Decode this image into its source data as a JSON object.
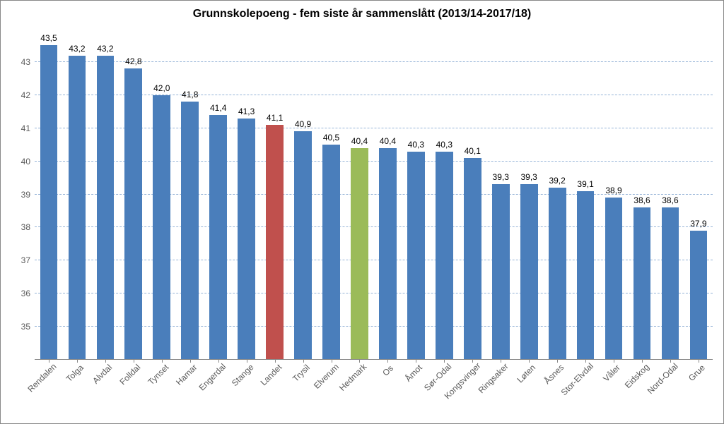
{
  "chart": {
    "type": "bar",
    "title": "Grunnskolepoeng  - fem siste år sammenslått (2013/14-2017/18)",
    "title_fontsize": 16,
    "title_color": "#000000",
    "background_color": "#ffffff",
    "border_color": "#888888",
    "grid_color": "#95b3d7",
    "grid_dash": "dashed",
    "axis_line_color": "#888888",
    "label_color": "#595959",
    "value_label_color": "#000000",
    "value_label_fontsize": 12,
    "axis_label_fontsize": 12,
    "x_label_rotation_deg": -45,
    "ylim": [
      34,
      44
    ],
    "yticks": [
      34,
      35,
      36,
      37,
      38,
      39,
      40,
      41,
      42,
      43
    ],
    "bar_width_ratio": 0.62,
    "default_bar_color": "#4a7ebb",
    "highlight_colors": {
      "Landet": "#c0504d",
      "Hedmark": "#9bbb59"
    },
    "data": [
      {
        "label": "Rendalen",
        "value": 43.5,
        "display": "43,5",
        "color": "#4a7ebb"
      },
      {
        "label": "Tolga",
        "value": 43.2,
        "display": "43,2",
        "color": "#4a7ebb"
      },
      {
        "label": "Alvdal",
        "value": 43.2,
        "display": "43,2",
        "color": "#4a7ebb"
      },
      {
        "label": "Folldal",
        "value": 42.8,
        "display": "42,8",
        "color": "#4a7ebb"
      },
      {
        "label": "Tynset",
        "value": 42.0,
        "display": "42,0",
        "color": "#4a7ebb"
      },
      {
        "label": "Hamar",
        "value": 41.8,
        "display": "41,8",
        "color": "#4a7ebb"
      },
      {
        "label": "Engerdal",
        "value": 41.4,
        "display": "41,4",
        "color": "#4a7ebb"
      },
      {
        "label": "Stange",
        "value": 41.3,
        "display": "41,3",
        "color": "#4a7ebb"
      },
      {
        "label": "Landet",
        "value": 41.1,
        "display": "41,1",
        "color": "#c0504d"
      },
      {
        "label": "Trysil",
        "value": 40.9,
        "display": "40,9",
        "color": "#4a7ebb"
      },
      {
        "label": "Elverum",
        "value": 40.5,
        "display": "40,5",
        "color": "#4a7ebb"
      },
      {
        "label": "Hedmark",
        "value": 40.4,
        "display": "40,4",
        "color": "#9bbb59"
      },
      {
        "label": "Os",
        "value": 40.4,
        "display": "40,4",
        "color": "#4a7ebb"
      },
      {
        "label": "Åmot",
        "value": 40.3,
        "display": "40,3",
        "color": "#4a7ebb"
      },
      {
        "label": "Sør-Odal",
        "value": 40.3,
        "display": "40,3",
        "color": "#4a7ebb"
      },
      {
        "label": "Kongsvinger",
        "value": 40.1,
        "display": "40,1",
        "color": "#4a7ebb"
      },
      {
        "label": "Ringsaker",
        "value": 39.3,
        "display": "39,3",
        "color": "#4a7ebb"
      },
      {
        "label": "Løten",
        "value": 39.3,
        "display": "39,3",
        "color": "#4a7ebb"
      },
      {
        "label": "Åsnes",
        "value": 39.2,
        "display": "39,2",
        "color": "#4a7ebb"
      },
      {
        "label": "Stor-Elvdal",
        "value": 39.1,
        "display": "39,1",
        "color": "#4a7ebb"
      },
      {
        "label": "Våler",
        "value": 38.9,
        "display": "38,9",
        "color": "#4a7ebb"
      },
      {
        "label": "Eidskog",
        "value": 38.6,
        "display": "38,6",
        "color": "#4a7ebb"
      },
      {
        "label": "Nord-Odal",
        "value": 38.6,
        "display": "38,6",
        "color": "#4a7ebb"
      },
      {
        "label": "Grue",
        "value": 37.9,
        "display": "37,9",
        "color": "#4a7ebb"
      }
    ]
  }
}
